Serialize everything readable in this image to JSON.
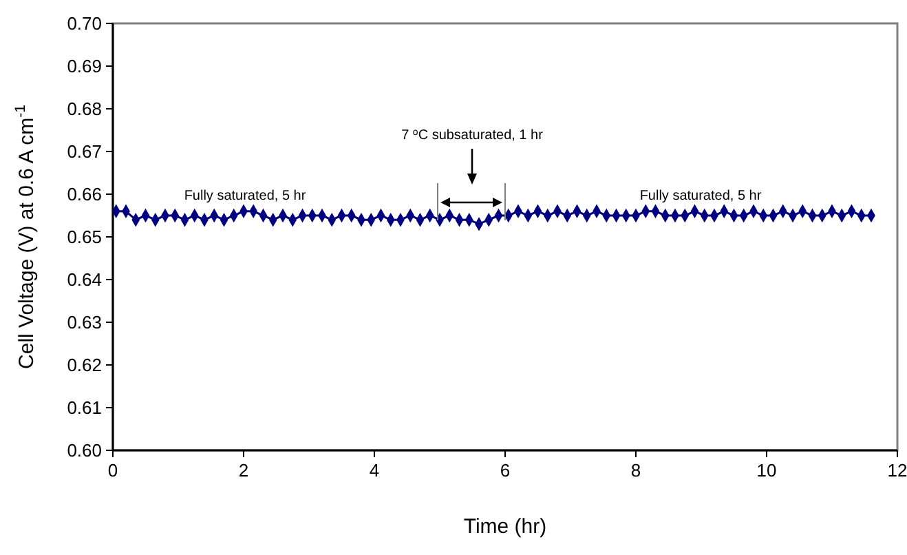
{
  "chart_data": {
    "type": "line",
    "xlabel": "Time (hr)",
    "ylabel": "Cell Voltage (V) at 0.6 A cm$^{-1}$",
    "xlim": [
      0,
      12
    ],
    "xticks": [
      0,
      2,
      4,
      6,
      8,
      10,
      12
    ],
    "ylim": [
      0.6,
      0.7
    ],
    "yticks": [
      {
        "value": 0.6,
        "label": "0.60"
      },
      0.61,
      0.62,
      0.63,
      0.64,
      0.65,
      0.66,
      0.67,
      0.68,
      0.69,
      {
        "value": 0.7,
        "label": "0.70"
      }
    ],
    "grid": false,
    "marker": "diamond",
    "line_style": "solid",
    "series": [
      {
        "color": "#000080",
        "x": [
          0.05,
          0.2,
          0.35,
          0.5,
          0.65,
          0.8,
          0.95,
          1.1,
          1.25,
          1.4,
          1.55,
          1.7,
          1.85,
          2.0,
          2.15,
          2.3,
          2.45,
          2.6,
          2.75,
          2.9,
          3.05,
          3.2,
          3.35,
          3.5,
          3.65,
          3.8,
          3.95,
          4.1,
          4.25,
          4.4,
          4.55,
          4.7,
          4.85,
          5.0,
          5.15,
          5.3,
          5.45,
          5.6,
          5.75,
          5.9,
          6.05,
          6.2,
          6.35,
          6.5,
          6.65,
          6.8,
          6.95,
          7.1,
          7.25,
          7.4,
          7.55,
          7.7,
          7.85,
          8.0,
          8.15,
          8.3,
          8.45,
          8.6,
          8.75,
          8.9,
          9.05,
          9.2,
          9.35,
          9.5,
          9.65,
          9.8,
          9.95,
          10.1,
          10.25,
          10.4,
          10.55,
          10.7,
          10.85,
          11.0,
          11.15,
          11.3,
          11.45,
          11.6
        ],
        "values": [
          0.656,
          0.656,
          0.654,
          0.655,
          0.654,
          0.655,
          0.655,
          0.654,
          0.655,
          0.654,
          0.655,
          0.654,
          0.655,
          0.656,
          0.656,
          0.655,
          0.654,
          0.655,
          0.654,
          0.655,
          0.655,
          0.655,
          0.654,
          0.655,
          0.655,
          0.654,
          0.654,
          0.655,
          0.654,
          0.654,
          0.655,
          0.654,
          0.655,
          0.654,
          0.655,
          0.654,
          0.654,
          0.653,
          0.654,
          0.655,
          0.655,
          0.656,
          0.655,
          0.656,
          0.655,
          0.656,
          0.655,
          0.656,
          0.655,
          0.656,
          0.655,
          0.655,
          0.655,
          0.655,
          0.656,
          0.656,
          0.655,
          0.655,
          0.655,
          0.656,
          0.655,
          0.655,
          0.656,
          0.655,
          0.655,
          0.656,
          0.655,
          0.655,
          0.656,
          0.655,
          0.656,
          0.655,
          0.655,
          0.656,
          0.655,
          0.656,
          0.655,
          0.655
        ]
      }
    ],
    "annotations": [
      "Fully saturated, 5 hr",
      "7 $^{o}$C subsaturated, 1 hr",
      "Fully saturated, 5 hr"
    ]
  }
}
